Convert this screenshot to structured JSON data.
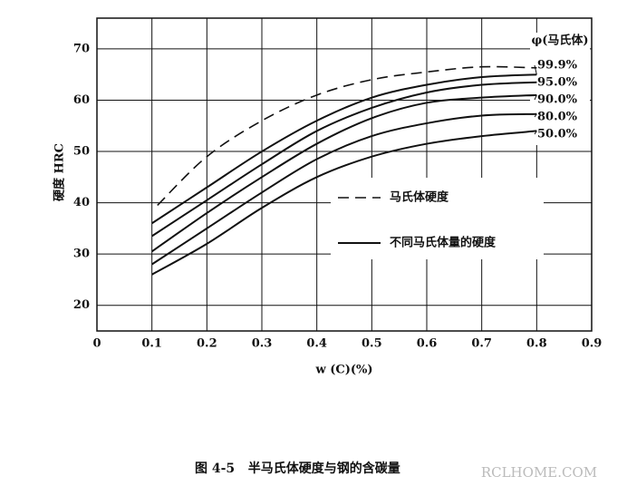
{
  "chart_data": {
    "type": "line",
    "y_label": "硬度 HRC",
    "x_label": "w (C)(%)",
    "caption": "图 4-5   半马氏体硬度与钢的含碳量",
    "watermark": "RCLHOME.COM",
    "curve_label_title": "φ(马氏体)",
    "solid_legend": "不同马氏体量的硬度",
    "x": [
      0.1,
      0.2,
      0.3,
      0.4,
      0.5,
      0.6,
      0.7,
      0.8
    ],
    "xlim": [
      0,
      0.9
    ],
    "ylim": [
      15,
      76
    ],
    "xticks": [
      0,
      0.1,
      0.2,
      0.3,
      0.4,
      0.5,
      0.6,
      0.7,
      0.8,
      0.9
    ],
    "yticks": [
      20,
      30,
      40,
      50,
      60,
      70
    ],
    "grid": true,
    "color": "#111111",
    "series": [
      {
        "name": "马氏体硬度",
        "dashed": true,
        "x": [
          0.11,
          0.2,
          0.3,
          0.4,
          0.5,
          0.6,
          0.7,
          0.8
        ],
        "values": [
          39.5,
          49,
          56,
          61,
          64,
          65.5,
          66.5,
          66.3
        ]
      },
      {
        "name": "99.9%",
        "values": [
          36,
          43,
          50,
          56,
          60.5,
          63,
          64.5,
          65
        ]
      },
      {
        "name": "95.0%",
        "values": [
          33.5,
          40.5,
          47.5,
          54,
          58.5,
          61.5,
          63,
          63.5
        ]
      },
      {
        "name": "90.0%",
        "values": [
          30.5,
          38,
          45,
          51.5,
          56.5,
          59.5,
          60.5,
          61
        ]
      },
      {
        "name": "80.0%",
        "values": [
          28,
          35,
          42,
          48.5,
          53,
          55.5,
          57,
          57.3
        ]
      },
      {
        "name": "50.0%",
        "values": [
          26,
          32,
          39,
          45,
          49,
          51.5,
          53,
          54
        ]
      }
    ]
  }
}
